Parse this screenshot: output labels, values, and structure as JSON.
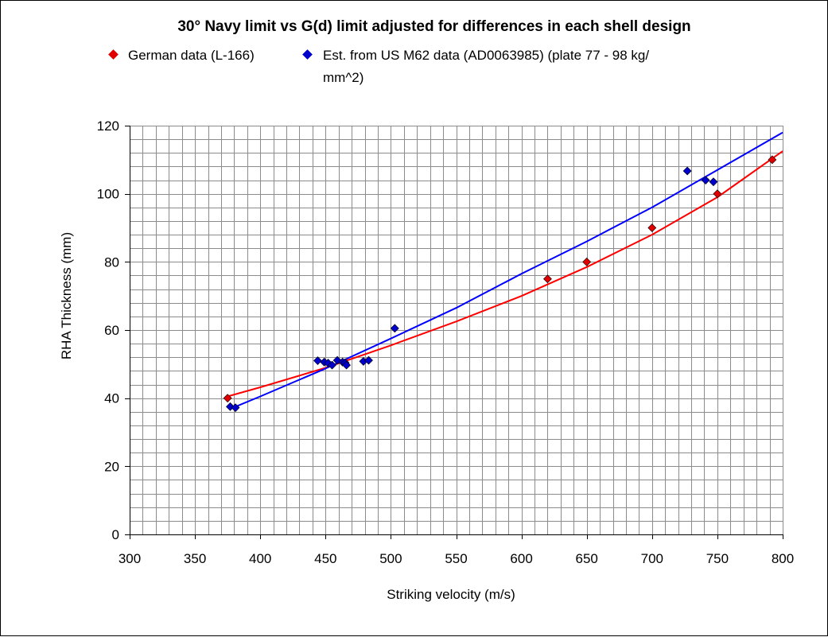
{
  "chart_data": {
    "type": "scatter",
    "title": "30° Navy limit vs G(d) limit adjusted for differences in each shell design",
    "xlabel": "Striking velocity (m/s)",
    "ylabel": "RHA Thickness (mm)",
    "xlim": [
      300,
      800
    ],
    "ylim": [
      0,
      120
    ],
    "x_major_ticks": [
      300,
      350,
      400,
      450,
      500,
      550,
      600,
      650,
      700,
      750,
      800
    ],
    "y_major_ticks": [
      0,
      20,
      40,
      60,
      80,
      100,
      120
    ],
    "x_minor_step": 10,
    "y_minor_step": 4,
    "grid": true,
    "legend": {
      "placement": "top",
      "entries": [
        {
          "label": "German data (L-166)"
        },
        {
          "label_lines": [
            "Est. from US M62 data (AD0063985) (plate 77 - 98 kg/",
            "mm^2)"
          ]
        }
      ]
    },
    "series": [
      {
        "name": "German data (L-166)",
        "color": "#ff0000",
        "marker_color": "#e00000",
        "points": [
          [
            375,
            40
          ],
          [
            620,
            75
          ],
          [
            650,
            80
          ],
          [
            700,
            90
          ],
          [
            750,
            100
          ],
          [
            792,
            110
          ]
        ],
        "trendline": [
          [
            375,
            40.5
          ],
          [
            400,
            43.2
          ],
          [
            450,
            48.9
          ],
          [
            500,
            55.5
          ],
          [
            550,
            62.5
          ],
          [
            600,
            70.0
          ],
          [
            650,
            78.5
          ],
          [
            700,
            88.0
          ],
          [
            750,
            99.0
          ],
          [
            800,
            112.5
          ]
        ]
      },
      {
        "name": "Est. from US M62 data (AD0063985) (plate 77 - 98 kg/mm^2)",
        "color": "#0000ff",
        "marker_color": "#0000cc",
        "points": [
          [
            377,
            37.5
          ],
          [
            381,
            37.2
          ],
          [
            444,
            51.0
          ],
          [
            449,
            50.6
          ],
          [
            452,
            50.3
          ],
          [
            455,
            49.7
          ],
          [
            459,
            51.1
          ],
          [
            463,
            50.6
          ],
          [
            465,
            50.4
          ],
          [
            466,
            49.7
          ],
          [
            479,
            50.8
          ],
          [
            483,
            51.1
          ],
          [
            503,
            60.5
          ],
          [
            727,
            106.7
          ],
          [
            741,
            104.0
          ],
          [
            747,
            103.5
          ]
        ],
        "trendline": [
          [
            381,
            37.5
          ],
          [
            400,
            40.5
          ],
          [
            450,
            48.7
          ],
          [
            500,
            57.5
          ],
          [
            550,
            66.5
          ],
          [
            600,
            76.5
          ],
          [
            650,
            86.0
          ],
          [
            700,
            96.0
          ],
          [
            750,
            107.0
          ],
          [
            800,
            118.0
          ]
        ]
      }
    ]
  }
}
